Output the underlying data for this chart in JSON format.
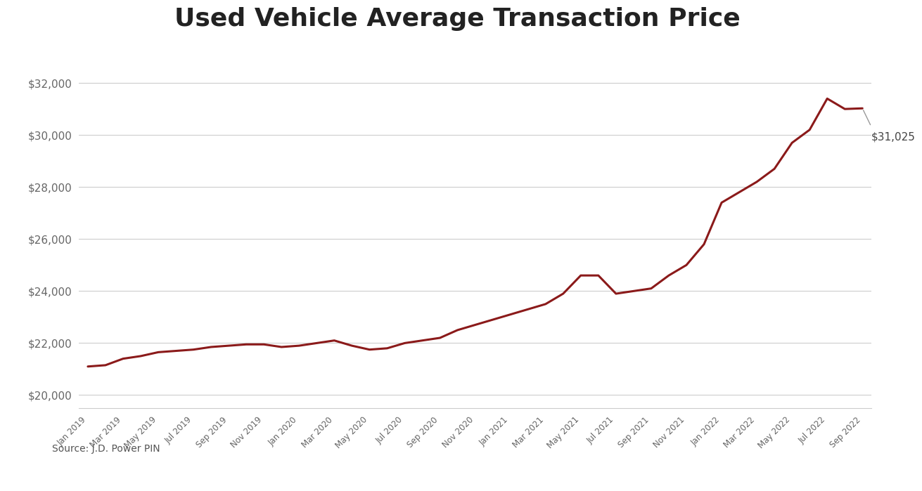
{
  "title": "Used Vehicle Average Transaction Price",
  "source": "Source: J.D. Power PIN",
  "line_color": "#8B1A1A",
  "background_color": "#FFFFFF",
  "footer_bar_color": "#8B1A1A",
  "annotation_value": "$31,025",
  "ylim": [
    19500,
    33500
  ],
  "yticks": [
    20000,
    22000,
    24000,
    26000,
    28000,
    30000,
    32000
  ],
  "monthly_values": [
    21100,
    21150,
    21400,
    21500,
    21650,
    21700,
    21750,
    21850,
    21900,
    21950,
    21950,
    21850,
    21900,
    22000,
    22100,
    21900,
    21750,
    21800,
    22000,
    22100,
    22200,
    22500,
    22700,
    22900,
    23100,
    23300,
    23500,
    23900,
    24600,
    24600,
    23900,
    24000,
    24100,
    24600,
    25000,
    25800,
    27400,
    27800,
    28200,
    28700,
    29700,
    30200,
    31400,
    31000,
    31025
  ],
  "tick_indices": [
    0,
    2,
    4,
    6,
    8,
    10,
    12,
    14,
    16,
    18,
    20,
    22,
    24,
    26,
    28,
    30,
    32,
    34,
    36,
    38,
    40,
    42,
    44
  ],
  "tick_labels": [
    "Jan 2019",
    "Mar 2019",
    "May 2019",
    "Jul 2019",
    "Sep 2019",
    "Nov 2019",
    "Jan 2020",
    "Mar 2020",
    "May 2020",
    "Jul 2020",
    "Sep 2020",
    "Nov 2020",
    "Jan 2021",
    "Mar 2021",
    "May 2021",
    "Jul 2021",
    "Sep 2021",
    "Nov 2021",
    "Jan 2022",
    "Mar 2022",
    "May 2022",
    "Jul 2022",
    "Sep 2022"
  ]
}
